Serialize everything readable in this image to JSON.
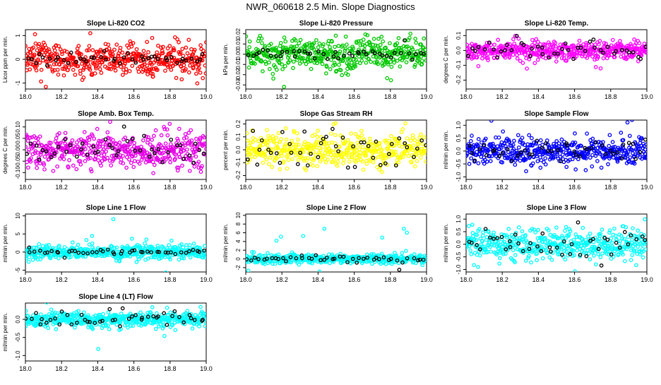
{
  "page": {
    "title": "NWR_060618  2.5 Min. Slope Diagnostics"
  },
  "marker_colors": {
    "secondary": "#000000"
  },
  "chart_data": [
    {
      "type": "scatter",
      "title": "Slope Li-820 CO2",
      "xlabel": "",
      "ylabel": "Licor ppm per min.",
      "xlim": [
        18.0,
        19.0
      ],
      "ylim": [
        -1.25,
        1.25
      ],
      "x_ticks": [
        "18.0",
        "18.2",
        "18.4",
        "18.6",
        "18.8",
        "19.0"
      ],
      "y_ticks": [
        {
          "value": -1,
          "label": "-1"
        },
        {
          "value": 0,
          "label": "0"
        },
        {
          "value": 1,
          "label": "1"
        }
      ],
      "color": "#ff0000",
      "series": [
        {
          "name": "primary",
          "color": "#ff0000",
          "count": 480,
          "sd": 0.32,
          "outlier_sd": 0.95
        },
        {
          "name": "secondary",
          "color": "#000000",
          "count": 45,
          "sd": 0.14,
          "outlier_sd": 0.4
        }
      ]
    },
    {
      "type": "scatter",
      "title": "Slope Li-820 Pressure",
      "xlabel": "",
      "ylabel": "kPa per min.",
      "xlim": [
        18.0,
        19.0
      ],
      "ylim": [
        -0.034,
        0.024
      ],
      "x_ticks": [
        "18.0",
        "18.2",
        "18.4",
        "18.6",
        "18.8",
        "19.0"
      ],
      "y_ticks": [
        {
          "value": -0.03,
          "label": "-0.03"
        },
        {
          "value": -0.02,
          "label": "-0.02"
        },
        {
          "value": -0.01,
          "label": "-0.01"
        },
        {
          "value": 0.0,
          "label": "0.00"
        },
        {
          "value": 0.01,
          "label": "0.01"
        },
        {
          "value": 0.02,
          "label": "0.02"
        }
      ],
      "color": "#00c800",
      "series": [
        {
          "name": "primary",
          "color": "#00c800",
          "count": 480,
          "sd": 0.0072,
          "outlier_sd": 0.016
        },
        {
          "name": "secondary",
          "color": "#000000",
          "count": 45,
          "sd": 0.003,
          "outlier_sd": 0.008
        }
      ]
    },
    {
      "type": "scatter",
      "title": "Slope Li-820 Temp.",
      "xlabel": "",
      "ylabel": "degrees C per min.",
      "xlim": [
        18.0,
        19.0
      ],
      "ylim": [
        -0.26,
        0.14
      ],
      "x_ticks": [
        "18.0",
        "18.2",
        "18.4",
        "18.6",
        "18.8",
        "19.0"
      ],
      "y_ticks": [
        {
          "value": -0.2,
          "label": "-0.2"
        },
        {
          "value": -0.1,
          "label": "-0.1"
        },
        {
          "value": 0.0,
          "label": "0.0"
        },
        {
          "value": 0.1,
          "label": "0.1"
        }
      ],
      "color": "#ff00ff",
      "series": [
        {
          "name": "primary",
          "color": "#ff00ff",
          "count": 480,
          "sd": 0.03,
          "outlier_sd": 0.09
        },
        {
          "name": "secondary",
          "color": "#000000",
          "count": 45,
          "sd": 0.035,
          "outlier_sd": 0.11
        }
      ]
    },
    {
      "type": "scatter",
      "title": "Slope Amb. Box Temp.",
      "xlabel": "",
      "ylabel": "degrees C per min.",
      "xlim": [
        18.0,
        19.0
      ],
      "ylim": [
        -0.13,
        0.13
      ],
      "x_ticks": [
        "18.0",
        "18.2",
        "18.4",
        "18.6",
        "18.8",
        "19.0"
      ],
      "y_ticks": [
        {
          "value": -0.1,
          "label": "-0.10"
        },
        {
          "value": -0.05,
          "label": "-0.05"
        },
        {
          "value": 0.0,
          "label": "0.00"
        },
        {
          "value": 0.05,
          "label": "0.05"
        },
        {
          "value": 0.1,
          "label": "0.10"
        }
      ],
      "color": "#e600e6",
      "series": [
        {
          "name": "primary",
          "color": "#e600e6",
          "count": 480,
          "sd": 0.035,
          "outlier_sd": 0.08
        },
        {
          "name": "secondary",
          "color": "#000000",
          "count": 45,
          "sd": 0.035,
          "outlier_sd": 0.08
        }
      ]
    },
    {
      "type": "scatter",
      "title": "Slope Gas Stream RH",
      "xlabel": "",
      "ylabel": "percent per min.",
      "xlim": [
        18.0,
        19.0
      ],
      "ylim": [
        -0.23,
        0.23
      ],
      "x_ticks": [
        "18.0",
        "18.2",
        "18.4",
        "18.6",
        "18.8",
        "19.0"
      ],
      "y_ticks": [
        {
          "value": -0.2,
          "label": "-0.2"
        },
        {
          "value": -0.1,
          "label": "-0.1"
        },
        {
          "value": 0.0,
          "label": "0.0"
        },
        {
          "value": 0.1,
          "label": "0.1"
        },
        {
          "value": 0.2,
          "label": "0.2"
        }
      ],
      "color": "#ffff00",
      "series": [
        {
          "name": "primary",
          "color": "#ffff00",
          "count": 480,
          "sd": 0.065,
          "outlier_sd": 0.13
        },
        {
          "name": "secondary",
          "color": "#000000",
          "count": 45,
          "sd": 0.08,
          "outlier_sd": 0.15
        }
      ]
    },
    {
      "type": "scatter",
      "title": "Slope Sample Flow",
      "xlabel": "",
      "ylabel": "ml/min per min.",
      "xlim": [
        18.0,
        19.0
      ],
      "ylim": [
        -1.1,
        1.2
      ],
      "x_ticks": [
        "18.0",
        "18.2",
        "18.4",
        "18.6",
        "18.8",
        "19.0"
      ],
      "y_ticks": [
        {
          "value": -1,
          "label": "-1.0"
        },
        {
          "value": -0.5,
          "label": "-0.5"
        },
        {
          "value": 0,
          "label": "0.0"
        },
        {
          "value": 0.5,
          "label": "0.5"
        },
        {
          "value": 1,
          "label": "1.0"
        }
      ],
      "color": "#0000ff",
      "series": [
        {
          "name": "primary",
          "color": "#0000ff",
          "count": 480,
          "sd": 0.25,
          "outlier_sd": 0.7
        },
        {
          "name": "secondary",
          "color": "#000000",
          "count": 45,
          "sd": 0.2,
          "outlier_sd": 0.6
        }
      ]
    },
    {
      "type": "scatter",
      "title": "Slope Line 1 Flow",
      "xlabel": "",
      "ylabel": "ml/min per min.",
      "xlim": [
        18.0,
        19.0
      ],
      "ylim": [
        -5.5,
        10.5
      ],
      "x_ticks": [
        "18.0",
        "18.2",
        "18.4",
        "18.6",
        "18.8",
        "19.0"
      ],
      "y_ticks": [
        {
          "value": -5,
          "label": "-5"
        },
        {
          "value": 0,
          "label": "0"
        },
        {
          "value": 5,
          "label": "5"
        },
        {
          "value": 10,
          "label": "10"
        }
      ],
      "color": "#00ffff",
      "series": [
        {
          "name": "primary",
          "color": "#00ffff",
          "count": 480,
          "sd": 0.9,
          "outlier_sd": 4.5
        },
        {
          "name": "secondary",
          "color": "#000000",
          "count": 45,
          "sd": 0.3,
          "outlier_sd": 0.8
        }
      ]
    },
    {
      "type": "scatter",
      "title": "Slope Line 2 Flow",
      "xlabel": "",
      "ylabel": "ml/min per min.",
      "xlim": [
        18.0,
        19.0
      ],
      "ylim": [
        -3.0,
        10.3
      ],
      "x_ticks": [
        "18.0",
        "18.2",
        "18.4",
        "18.6",
        "18.8",
        "19.0"
      ],
      "y_ticks": [
        {
          "value": -2,
          "label": "-2"
        },
        {
          "value": 0,
          "label": "0"
        },
        {
          "value": 2,
          "label": "2"
        },
        {
          "value": 4,
          "label": "4"
        },
        {
          "value": 6,
          "label": "6"
        },
        {
          "value": 8,
          "label": "8"
        },
        {
          "value": 10,
          "label": "10"
        }
      ],
      "color": "#00ffff",
      "series": [
        {
          "name": "primary",
          "color": "#00ffff",
          "count": 480,
          "sd": 0.55,
          "outlier_sd": 4.0
        },
        {
          "name": "secondary",
          "color": "#000000",
          "count": 45,
          "sd": 0.35,
          "outlier_sd": 1.0
        }
      ]
    },
    {
      "type": "scatter",
      "title": "Slope Line 3 Flow",
      "xlabel": "",
      "ylabel": "ml/min per min.",
      "xlim": [
        18.0,
        19.0
      ],
      "ylim": [
        -1.1,
        1.2
      ],
      "x_ticks": [
        "18.0",
        "18.2",
        "18.4",
        "18.6",
        "18.8",
        "19.0"
      ],
      "y_ticks": [
        {
          "value": -1,
          "label": "-1.0"
        },
        {
          "value": -0.5,
          "label": "-0.5"
        },
        {
          "value": 0,
          "label": "0.0"
        },
        {
          "value": 0.5,
          "label": "0.5"
        },
        {
          "value": 1,
          "label": "1.0"
        }
      ],
      "color": "#00ffff",
      "series": [
        {
          "name": "primary",
          "color": "#00ffff",
          "count": 480,
          "sd": 0.3,
          "outlier_sd": 0.55
        },
        {
          "name": "secondary",
          "color": "#000000",
          "count": 45,
          "sd": 0.3,
          "outlier_sd": 0.55
        }
      ]
    },
    {
      "type": "scatter",
      "title": "Slope Line 4 (LT) Flow",
      "xlabel": "",
      "ylabel": "ml/min per min.",
      "xlim": [
        18.0,
        19.0
      ],
      "ylim": [
        -1.15,
        0.45
      ],
      "x_ticks": [
        "18.0",
        "18.2",
        "18.4",
        "18.6",
        "18.8",
        "19.0"
      ],
      "y_ticks": [
        {
          "value": -1,
          "label": "-1.0"
        },
        {
          "value": -0.5,
          "label": "-0.5"
        },
        {
          "value": 0,
          "label": "0.0"
        }
      ],
      "color": "#00ffff",
      "series": [
        {
          "name": "primary",
          "color": "#00ffff",
          "count": 480,
          "sd": 0.1,
          "outlier_sd": 0.5
        },
        {
          "name": "secondary",
          "color": "#000000",
          "count": 45,
          "sd": 0.12,
          "outlier_sd": 0.25
        }
      ]
    }
  ]
}
